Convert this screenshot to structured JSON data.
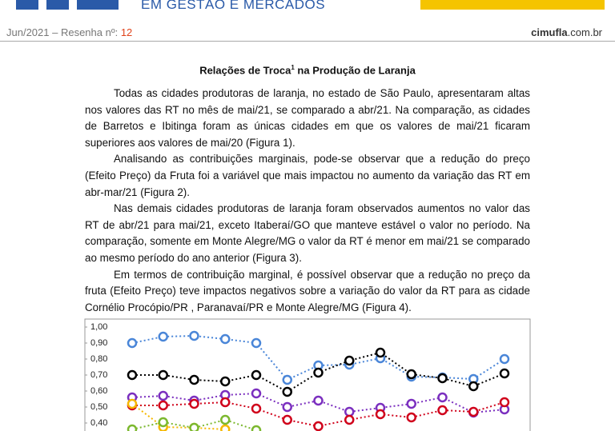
{
  "header": {
    "subtitle": "EM GESTÃO E MERCADOS",
    "issue": "Jun/2021 – Resenha nº:",
    "number": "12",
    "site_bold": "cimufla",
    "site_rest": ".com.br"
  },
  "article": {
    "title": "Relações de Troca",
    "title_sup": "1",
    "title_rest": " na Produção de Laranja",
    "paragraphs": [
      "Todas as cidades produtoras de laranja, no estado de São Paulo, apresentaram altas nos valores das RT no mês de mai/21, se comparado a abr/21. Na comparação, as cidades de Barretos e Ibitinga foram as únicas cidades em que os valores de mai/21 ficaram superiores aos valores de mai/20 (Figura 1).",
      "Analisando as contribuições marginais, pode-se observar que a redução do preço (Efeito Preço) da Fruta foi a variável que mais impactou no aumento da variação das RT em abr-mar/21 (Figura 2).",
      "Nas demais cidades produtoras de laranja foram observados aumentos no valor das RT de abr/21 para mai/21, exceto Itaberaí/GO que manteve estável o valor no período. Na comparação, somente em Monte Alegre/MG o valor da RT é menor em mai/21 se comparado ao mesmo período do ano anterior (Figura 3).",
      "Em termos de contribuição marginal, é possível observar que a redução no preço da fruta (Efeito Preço) teve impactos negativos sobre a variação do valor da RT para as cidade Cornélio Procópio/PR , Paranavaí/PR e Monte Alegre/MG (Figura 4)."
    ]
  },
  "chart_data": {
    "type": "line",
    "categories": [
      null,
      null,
      null,
      null,
      null,
      null,
      null,
      null,
      null,
      null,
      null,
      null,
      null
    ],
    "series": [
      {
        "color": "#4a86d8",
        "values": [
          0.9,
          0.94,
          0.945,
          0.925,
          0.9,
          0.67,
          0.76,
          0.765,
          0.805,
          0.69,
          0.685,
          0.675,
          0.8
        ]
      },
      {
        "color": "#000000",
        "values": [
          0.7,
          0.7,
          0.67,
          0.66,
          0.7,
          0.595,
          0.715,
          0.79,
          0.84,
          0.705,
          0.68,
          0.63,
          0.71
        ]
      },
      {
        "color": "#7b2fbf",
        "values": [
          0.56,
          0.57,
          0.54,
          0.575,
          0.585,
          0.5,
          0.54,
          0.47,
          0.495,
          0.52,
          0.56,
          0.465,
          0.485
        ]
      },
      {
        "color": "#d0021b",
        "values": [
          0.51,
          0.51,
          0.52,
          0.53,
          0.49,
          0.42,
          0.38,
          0.42,
          0.455,
          0.435,
          0.48,
          0.47,
          0.53
        ]
      },
      {
        "color": "#f5b800",
        "values": [
          0.52,
          0.375,
          0.37,
          0.36,
          null,
          null,
          null,
          null,
          null,
          null,
          null,
          null,
          null
        ]
      },
      {
        "color": "#7cb82f",
        "values": [
          0.36,
          0.405,
          0.37,
          0.42,
          0.355,
          null,
          null,
          null,
          null,
          null,
          null,
          null,
          null
        ]
      }
    ],
    "ylim": [
      0.35,
      1.05
    ],
    "yticks": [
      {
        "value": 1.0,
        "label": "1,00"
      },
      {
        "value": 0.9,
        "label": "0,90"
      },
      {
        "value": 0.8,
        "label": "0,80"
      },
      {
        "value": 0.7,
        "label": "0,70"
      },
      {
        "value": 0.6,
        "label": "0,60"
      },
      {
        "value": 0.5,
        "label": "0,50"
      },
      {
        "value": 0.4,
        "label": "0,40"
      }
    ],
    "grid": false
  }
}
